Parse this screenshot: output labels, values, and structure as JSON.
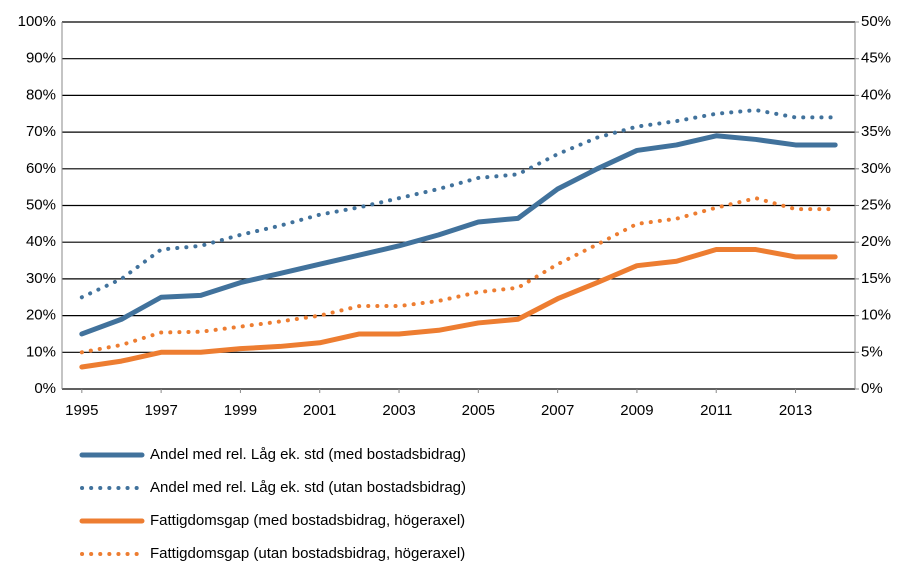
{
  "chart_data": {
    "type": "line",
    "x": [
      1995,
      1996,
      1997,
      1998,
      1999,
      2000,
      2001,
      2002,
      2003,
      2004,
      2005,
      2006,
      2007,
      2008,
      2009,
      2010,
      2011,
      2012,
      2013,
      2014
    ],
    "xlim": [
      1994.5,
      2014.5
    ],
    "xticks": [
      1995,
      1997,
      1999,
      2001,
      2003,
      2005,
      2007,
      2009,
      2011,
      2013
    ],
    "ylim": [
      0,
      100
    ],
    "yticks": [
      {
        "value": 0,
        "label": "0%"
      },
      {
        "value": 10,
        "label": "10%"
      },
      {
        "value": 20,
        "label": "20%"
      },
      {
        "value": 30,
        "label": "30%"
      },
      {
        "value": 40,
        "label": "40%"
      },
      {
        "value": 50,
        "label": "50%"
      },
      {
        "value": 60,
        "label": "60%"
      },
      {
        "value": 70,
        "label": "70%"
      },
      {
        "value": 80,
        "label": "80%"
      },
      {
        "value": 90,
        "label": "90%"
      },
      {
        "value": 100,
        "label": "100%"
      }
    ],
    "y2lim": [
      0,
      50
    ],
    "y2ticks": [
      {
        "value": 0,
        "label": "0%"
      },
      {
        "value": 5,
        "label": "5%"
      },
      {
        "value": 10,
        "label": "10%"
      },
      {
        "value": 15,
        "label": "15%"
      },
      {
        "value": 20,
        "label": "20%"
      },
      {
        "value": 25,
        "label": "25%"
      },
      {
        "value": 30,
        "label": "30%"
      },
      {
        "value": 35,
        "label": "35%"
      },
      {
        "value": 40,
        "label": "40%"
      },
      {
        "value": 45,
        "label": "45%"
      },
      {
        "value": 50,
        "label": "50%"
      }
    ],
    "grid": true,
    "series": [
      {
        "name": "Andel med rel. Låg ek. std (med bostadsbidrag)",
        "color": "#41729c",
        "line_style": "solid",
        "values": [
          15,
          19,
          25,
          25.5,
          29,
          31.5,
          34,
          36.5,
          39,
          42,
          45.5,
          46.5,
          54.5,
          60,
          65,
          66.5,
          69,
          68,
          66.5,
          66.5
        ]
      },
      {
        "name": "Andel med rel. Låg ek. std (utan bostadsbidrag)",
        "color": "#41729c",
        "line_style": "dotted",
        "values": [
          25,
          30,
          38,
          39,
          42,
          44.5,
          47.5,
          49.5,
          52,
          54.5,
          57.5,
          58.5,
          64,
          68.5,
          71.5,
          73,
          75,
          76,
          74,
          74
        ]
      },
      {
        "name": "Fattigdomsgap (med bostadsbidrag, högeraxel)",
        "color": "#ed7d31",
        "line_style": "solid",
        "axis": "y2",
        "values": [
          3,
          3.8,
          5,
          5,
          5.5,
          5.8,
          6.3,
          7.5,
          7.5,
          8,
          9,
          9.5,
          12.3,
          14.5,
          16.8,
          17.4,
          19,
          19,
          18,
          18
        ]
      },
      {
        "name": "Fattigdomsgap (utan bostadsbidrag, högeraxel)",
        "color": "#ed7d31",
        "line_style": "dotted",
        "axis": "y2",
        "values": [
          5,
          6,
          7.7,
          7.8,
          8.5,
          9.2,
          10,
          11.3,
          11.3,
          12,
          13.2,
          13.8,
          17,
          19.7,
          22.5,
          23.2,
          24.7,
          26,
          24.5,
          24.5
        ]
      }
    ]
  }
}
